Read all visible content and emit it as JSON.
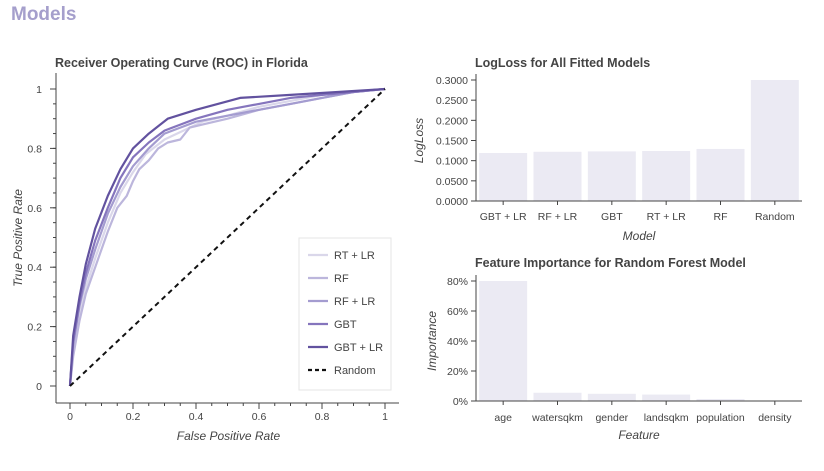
{
  "page": {
    "title": "Models"
  },
  "chart_data": [
    {
      "id": "roc",
      "type": "line",
      "title": "Receiver Operating Curve (ROC) in Florida",
      "xlabel": "False Positive Rate",
      "ylabel": "True Positive Rate",
      "xlim": [
        0,
        1
      ],
      "ylim": [
        0,
        1
      ],
      "xticks": [
        0,
        0.2,
        0.4,
        0.6,
        0.8,
        1
      ],
      "xtick_labels": [
        "0",
        "0.2",
        "0.4",
        "0.6",
        "0.8",
        "1"
      ],
      "yticks": [
        0,
        0.2,
        0.4,
        0.6,
        0.8,
        1
      ],
      "ytick_labels": [
        "0",
        "0.2",
        "0.4",
        "0.6",
        "0.8",
        "1"
      ],
      "legend_position": "bottom-right",
      "series": [
        {
          "name": "RT + LR",
          "color": "#dad7ea",
          "points": [
            [
              0,
              0
            ],
            [
              0.01,
              0.12
            ],
            [
              0.03,
              0.25
            ],
            [
              0.05,
              0.33
            ],
            [
              0.08,
              0.43
            ],
            [
              0.12,
              0.55
            ],
            [
              0.16,
              0.65
            ],
            [
              0.2,
              0.72
            ],
            [
              0.24,
              0.78
            ],
            [
              0.3,
              0.83
            ],
            [
              0.36,
              0.86
            ],
            [
              0.42,
              0.89
            ],
            [
              0.5,
              0.91
            ],
            [
              0.6,
              0.94
            ],
            [
              0.7,
              0.96
            ],
            [
              0.8,
              0.98
            ],
            [
              0.9,
              0.99
            ],
            [
              1,
              1
            ]
          ]
        },
        {
          "name": "RF",
          "color": "#bcb6dc",
          "points": [
            [
              0,
              0
            ],
            [
              0.01,
              0.1
            ],
            [
              0.03,
              0.22
            ],
            [
              0.05,
              0.31
            ],
            [
              0.08,
              0.4
            ],
            [
              0.12,
              0.52
            ],
            [
              0.15,
              0.6
            ],
            [
              0.18,
              0.64
            ],
            [
              0.2,
              0.69
            ],
            [
              0.22,
              0.73
            ],
            [
              0.25,
              0.76
            ],
            [
              0.28,
              0.8
            ],
            [
              0.31,
              0.82
            ],
            [
              0.35,
              0.83
            ],
            [
              0.38,
              0.87
            ],
            [
              0.42,
              0.88
            ],
            [
              0.5,
              0.9
            ],
            [
              0.6,
              0.93
            ],
            [
              0.7,
              0.95
            ],
            [
              0.8,
              0.97
            ],
            [
              0.9,
              0.99
            ],
            [
              1,
              1
            ]
          ]
        },
        {
          "name": "RF + LR",
          "color": "#a49cd0",
          "points": [
            [
              0,
              0
            ],
            [
              0.01,
              0.14
            ],
            [
              0.03,
              0.27
            ],
            [
              0.05,
              0.36
            ],
            [
              0.08,
              0.46
            ],
            [
              0.12,
              0.58
            ],
            [
              0.16,
              0.67
            ],
            [
              0.2,
              0.74
            ],
            [
              0.25,
              0.8
            ],
            [
              0.3,
              0.85
            ],
            [
              0.35,
              0.87
            ],
            [
              0.4,
              0.89
            ],
            [
              0.45,
              0.9
            ],
            [
              0.5,
              0.91
            ],
            [
              0.6,
              0.93
            ],
            [
              0.7,
              0.95
            ],
            [
              0.8,
              0.97
            ],
            [
              0.9,
              0.99
            ],
            [
              1,
              1
            ]
          ]
        },
        {
          "name": "GBT",
          "color": "#8575bd",
          "points": [
            [
              0,
              0
            ],
            [
              0.01,
              0.15
            ],
            [
              0.03,
              0.28
            ],
            [
              0.05,
              0.38
            ],
            [
              0.08,
              0.49
            ],
            [
              0.12,
              0.6
            ],
            [
              0.16,
              0.7
            ],
            [
              0.2,
              0.77
            ],
            [
              0.25,
              0.82
            ],
            [
              0.3,
              0.86
            ],
            [
              0.35,
              0.88
            ],
            [
              0.4,
              0.9
            ],
            [
              0.5,
              0.93
            ],
            [
              0.55,
              0.94
            ],
            [
              0.6,
              0.95
            ],
            [
              0.7,
              0.97
            ],
            [
              0.8,
              0.98
            ],
            [
              0.9,
              0.99
            ],
            [
              1,
              1
            ]
          ]
        },
        {
          "name": "GBT + LR",
          "color": "#62529f",
          "points": [
            [
              0,
              0
            ],
            [
              0.01,
              0.17
            ],
            [
              0.03,
              0.3
            ],
            [
              0.05,
              0.41
            ],
            [
              0.08,
              0.53
            ],
            [
              0.12,
              0.64
            ],
            [
              0.16,
              0.73
            ],
            [
              0.2,
              0.8
            ],
            [
              0.25,
              0.85
            ],
            [
              0.31,
              0.9
            ],
            [
              0.4,
              0.93
            ],
            [
              0.54,
              0.97
            ],
            [
              0.7,
              0.98
            ],
            [
              0.85,
              0.99
            ],
            [
              1,
              1
            ]
          ]
        },
        {
          "name": "Random",
          "color": "#111111",
          "dashed": true,
          "points": [
            [
              0,
              0
            ],
            [
              1,
              1
            ]
          ]
        }
      ]
    },
    {
      "id": "logloss",
      "type": "bar",
      "title": "LogLoss for All Fitted Models",
      "xlabel": "Model",
      "ylabel": "LogLoss",
      "categories": [
        "GBT + LR",
        "RF + LR",
        "GBT",
        "RT + LR",
        "RF",
        "Random"
      ],
      "values": [
        0.119,
        0.122,
        0.123,
        0.124,
        0.129,
        0.3
      ],
      "ylim": [
        0,
        0.3
      ],
      "yticks": [
        0,
        0.05,
        0.1,
        0.15,
        0.2,
        0.25,
        0.3
      ],
      "ytick_labels": [
        "0.0000",
        "0.0500",
        "0.1000",
        "0.1500",
        "0.2000",
        "0.2500",
        "0.3000"
      ],
      "bar_color": "#ebeaf3"
    },
    {
      "id": "importance",
      "type": "bar",
      "title": "Feature Importance for Random Forest Model",
      "xlabel": "Feature",
      "ylabel": "Importance",
      "categories": [
        "age",
        "watersqkm",
        "gender",
        "landsqkm",
        "population",
        "density"
      ],
      "values": [
        0.8,
        0.055,
        0.048,
        0.043,
        0.013,
        0.001
      ],
      "ylim": [
        0,
        0.8
      ],
      "yticks": [
        0,
        0.2,
        0.4,
        0.6,
        0.8
      ],
      "ytick_labels": [
        "0%",
        "20%",
        "40%",
        "60%",
        "80%"
      ],
      "bar_color": "#ebeaf3"
    }
  ]
}
